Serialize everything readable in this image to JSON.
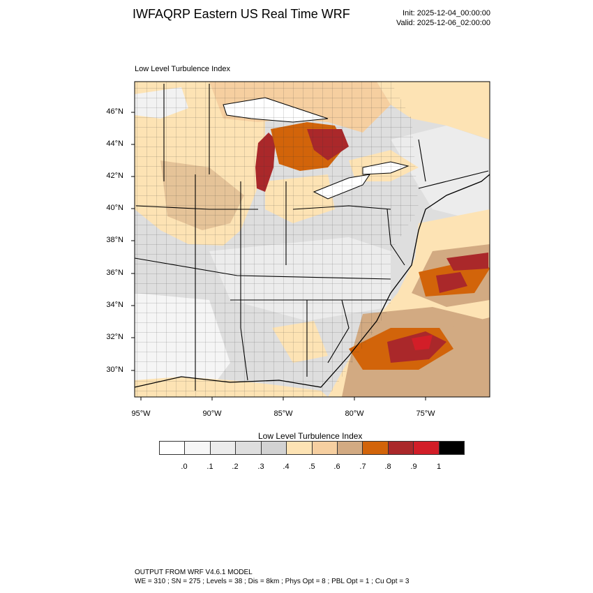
{
  "header": {
    "title": "IWFAQRP Eastern US Real Time WRF",
    "init": "Init: 2025-12-04_00:00:00",
    "valid": "Valid: 2025-12-06_02:00:00"
  },
  "plot": {
    "field_label": "Low Level Turbulence Index",
    "lat_ticks": [
      "46°N",
      "44°N",
      "42°N",
      "40°N",
      "38°N",
      "36°N",
      "34°N",
      "32°N",
      "30°N"
    ],
    "lon_ticks": [
      "95°W",
      "90°W",
      "85°W",
      "80°W",
      "75°W"
    ]
  },
  "colorbar": {
    "title": "Low Level Turbulence Index",
    "labels": [
      ".0",
      ".1",
      ".2",
      ".3",
      ".4",
      ".5",
      ".6",
      ".7",
      ".8",
      ".9",
      "1"
    ],
    "colors": [
      "#ffffff",
      "#f7f7f7",
      "#ececec",
      "#dedede",
      "#d2d2d2",
      "#fde3b4",
      "#f6cfa0",
      "#d2aa82",
      "#d2640a",
      "#aa282a",
      "#d21e28",
      "#000000"
    ]
  },
  "footer": {
    "line1": "OUTPUT FROM WRF V4.6.1 MODEL",
    "line2": "WE = 310 ; SN = 275 ; Levels = 38 ; Dis = 8km ; Phys Opt = 8 ; PBL Opt = 1 ; Cu Opt = 3"
  }
}
